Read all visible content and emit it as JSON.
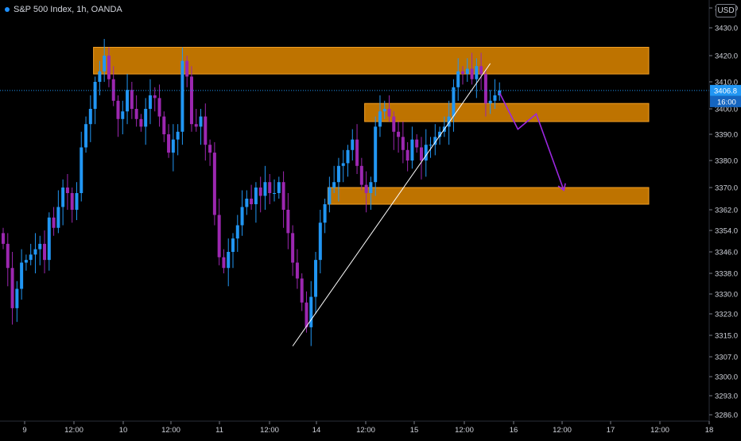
{
  "header": {
    "title": "S&P 500 Index, 1h, OANDA",
    "currency": "USD"
  },
  "colors": {
    "background": "#000000",
    "bull": "#2196f3",
    "bear": "#9c27b0",
    "zone": "#c97a00",
    "projection": "#9c27e0",
    "trendline": "#ffffff",
    "price_line": "#2196f3"
  },
  "chart_data": {
    "type": "candlestick",
    "title": "S&P 500 Index, 1h, OANDA",
    "currency": "USD",
    "grid": false,
    "ylim": [
      3282,
      3442
    ],
    "y_ticks": [
      "3440.0",
      "3430.0",
      "3420.0",
      "3410.0",
      "3400.0",
      "3390.0",
      "3380.0",
      "3370.0",
      "3362.0",
      "3354.0",
      "3346.0",
      "3338.0",
      "3330.0",
      "3323.0",
      "3315.0",
      "3307.0",
      "3300.0",
      "3293.0",
      "3286.0"
    ],
    "x_ticks": [
      "9",
      "12:00",
      "10",
      "12:00",
      "11",
      "12:00",
      "14",
      "12:00",
      "15",
      "12:00",
      "16",
      "12:00",
      "17",
      "12:00",
      "18"
    ],
    "last_price": "3406.8",
    "last_time": "16:00",
    "closes": [
      3349,
      3340,
      3325,
      3332,
      3342,
      3343,
      3345,
      3347,
      3349,
      3343,
      3359,
      3355,
      3363,
      3370,
      3368,
      3362,
      3368,
      3385,
      3394,
      3400,
      3410,
      3414,
      3420,
      3411,
      3403,
      3396,
      3399,
      3407,
      3400,
      3396,
      3393,
      3400,
      3405,
      3404,
      3397,
      3390,
      3383,
      3388,
      3391,
      3418,
      3412,
      3394,
      3393,
      3397,
      3386,
      3383,
      3360,
      3344,
      3340,
      3346,
      3351,
      3356,
      3363,
      3366,
      3364,
      3370,
      3367,
      3372,
      3368,
      3368,
      3372,
      3362,
      3353,
      3342,
      3336,
      3327,
      3318,
      3329,
      3343,
      3357,
      3364,
      3370,
      3372,
      3378,
      3379,
      3384,
      3388,
      3378,
      3371,
      3368,
      3372,
      3393,
      3399,
      3400,
      3397,
      3391,
      3389,
      3384,
      3380,
      3388,
      3385,
      3380,
      3386,
      3386,
      3389,
      3391,
      3393,
      3397,
      3408,
      3414,
      3413,
      3415,
      3411,
      3416,
      3413,
      3402,
      3403,
      3405,
      3406.8
    ],
    "zones": [
      {
        "from": 3413,
        "to": 3423,
        "start_index": 20
      },
      {
        "from": 3395,
        "to": 3402,
        "start_index": 79
      },
      {
        "from": 3364,
        "to": 3370,
        "start_index": 71
      }
    ],
    "trendline": [
      {
        "i": 63,
        "price": 3311
      },
      {
        "i": 106,
        "price": 3417
      }
    ],
    "projection": [
      {
        "i": 108,
        "price": 3406
      },
      {
        "i": 112,
        "price": 3392
      },
      {
        "i": 116,
        "price": 3398
      },
      {
        "i": 122,
        "price": 3369
      }
    ]
  }
}
